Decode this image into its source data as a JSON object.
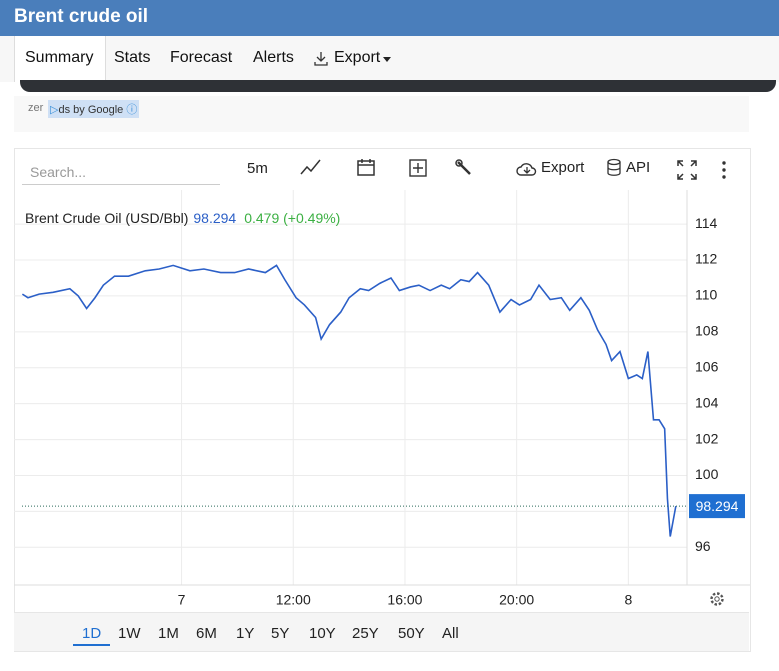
{
  "header": {
    "title": "Brent crude oil"
  },
  "tabs": [
    "Summary",
    "Stats",
    "Forecast",
    "Alerts",
    "Export"
  ],
  "ad": {
    "prefix": "zer",
    "label": "ds by Google"
  },
  "toolbar": {
    "search_placeholder": "Search...",
    "interval": "5m",
    "export": "Export",
    "api": "API"
  },
  "legend": {
    "name": "Brent Crude Oil (USD/Bbl)",
    "change": "0.479 (+0.49%)"
  },
  "chart_data": {
    "type": "line",
    "x": [
      -5.7,
      -5.5,
      -5.1,
      -4.6,
      -4.0,
      -3.7,
      -3.4,
      -3.1,
      -2.8,
      -2.4,
      -1.9,
      -1.3,
      -0.8,
      -0.3,
      0.3,
      0.8,
      1.4,
      1.9,
      2.4,
      3.0,
      3.4,
      3.7,
      4.1,
      4.4,
      4.8,
      5.0,
      5.3,
      5.7,
      6.0,
      6.4,
      6.7,
      7.1,
      7.5,
      7.8,
      8.2,
      8.5,
      8.9,
      9.3,
      9.6,
      10.0,
      10.3,
      10.6,
      11.0,
      11.4,
      11.8,
      12.1,
      12.5,
      12.8,
      13.2,
      13.6,
      13.9,
      14.3,
      14.6,
      14.9,
      15.2,
      15.4,
      15.7,
      16.0,
      16.3,
      16.5,
      16.7,
      16.9,
      17.1,
      17.3,
      17.4,
      17.5,
      17.7
    ],
    "series": [
      {
        "name": "Brent Crude Oil (USD/Bbl)",
        "color": "#2b5fc7",
        "values": [
          110.1,
          109.9,
          110.1,
          110.2,
          110.4,
          110.0,
          109.3,
          109.9,
          110.6,
          111.1,
          111.1,
          111.4,
          111.5,
          111.7,
          111.4,
          111.5,
          111.3,
          111.3,
          111.5,
          111.3,
          111.7,
          110.9,
          109.9,
          109.5,
          108.8,
          107.6,
          108.4,
          109.1,
          109.9,
          110.4,
          110.3,
          110.7,
          111.0,
          110.3,
          110.5,
          110.6,
          110.3,
          110.6,
          110.4,
          110.9,
          110.8,
          111.3,
          110.6,
          109.1,
          109.8,
          109.5,
          109.8,
          110.6,
          109.8,
          109.9,
          109.2,
          109.9,
          109.2,
          108.1,
          107.3,
          106.4,
          106.9,
          105.4,
          105.6,
          105.4,
          106.9,
          103.1,
          103.1,
          102.6,
          98.7,
          96.6,
          98.294
        ]
      }
    ],
    "xlim": [
      -6,
      18.1
    ],
    "xticks": [
      {
        "value": 0,
        "label": "7"
      },
      {
        "value": 4,
        "label": "12:00"
      },
      {
        "value": 8,
        "label": "16:00"
      },
      {
        "value": 12,
        "label": "20:00"
      },
      {
        "value": 16,
        "label": "8"
      }
    ],
    "ylim": [
      93.9,
      115.9
    ],
    "yticks": [
      96,
      98,
      100,
      102,
      104,
      106,
      108,
      110,
      112,
      114
    ],
    "grid": true
  },
  "ranges": [
    "1D",
    "1W",
    "1M",
    "6M",
    "1Y",
    "5Y",
    "10Y",
    "25Y",
    "50Y",
    "All"
  ]
}
